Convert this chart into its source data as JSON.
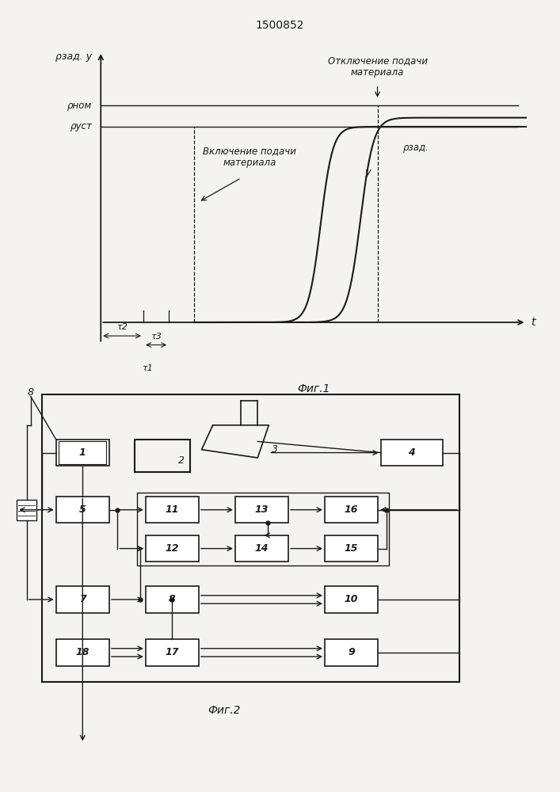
{
  "title": "1500852",
  "fig1_label": "Фиг.1",
  "fig2_label": "Фиг.2",
  "y_axis_label": "ρзад. y",
  "x_axis_label": "t",
  "p_nom_label": "ρном",
  "p_ust_label": "ρуст",
  "p_zad_label": "ρзад.",
  "y_label": "y",
  "text1": "Отключение подачи\nматериала",
  "text2": "Включение подачи\nматериала",
  "tau2_label": "τ2",
  "tau3_label": "τ3",
  "tau1_label": "τ1",
  "bg_color": "#f5f3ef",
  "line_color": "#1a1a1a"
}
